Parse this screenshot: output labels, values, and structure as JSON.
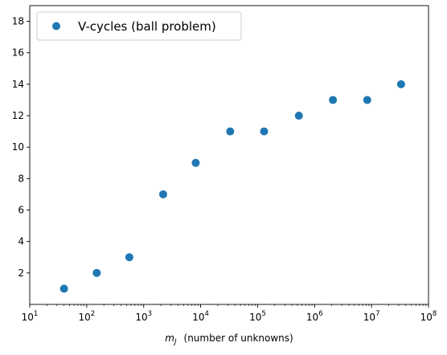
{
  "chart_data": {
    "type": "scatter",
    "x_scale": "log",
    "xlim_exponent": [
      1,
      8
    ],
    "x_tick_exponents": [
      1,
      2,
      3,
      4,
      5,
      6,
      7,
      8
    ],
    "x_tick_base": "10",
    "ylim": [
      0,
      19
    ],
    "y_ticks": [
      2,
      4,
      6,
      8,
      10,
      12,
      14,
      16,
      18
    ],
    "grid": false,
    "legend_position": "top-left",
    "xlabel_symbol": "m",
    "xlabel_subscript": "J",
    "xlabel_text": "(number of unknowns)",
    "ylabel": "",
    "title": "",
    "series": [
      {
        "name": "V-cycles (ball problem)",
        "color": "#1f77b4",
        "marker": "circle",
        "x": [
          40,
          150,
          560,
          2200,
          8200,
          33000,
          130000,
          530000,
          2100000,
          8400000,
          33000000
        ],
        "y": [
          1,
          2,
          3,
          7,
          9,
          11,
          11,
          12,
          13,
          13,
          14
        ]
      }
    ]
  }
}
